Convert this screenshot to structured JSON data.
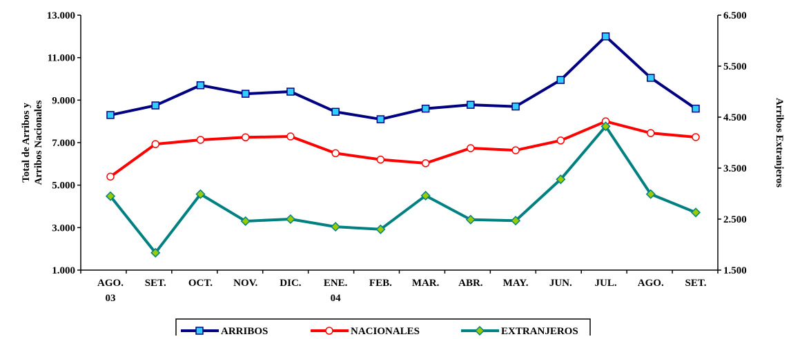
{
  "chart_data": {
    "type": "line",
    "categories": [
      "AGO.\n03",
      "SET.",
      "OCT.",
      "NOV.",
      "DIC.",
      "ENE.\n04",
      "FEB.",
      "MAR.",
      "ABR.",
      "MAY.",
      "JUN.",
      "JUL.",
      "AGO.",
      "SET."
    ],
    "ylabel": "Total de Arribos y\nArribos Nacionales",
    "y2label": "Arribos Extranjeros",
    "ylim": [
      1000,
      13000
    ],
    "yticks": [
      {
        "value": 1000,
        "label": "1.000"
      },
      {
        "value": 3000,
        "label": "3.000"
      },
      {
        "value": 5000,
        "label": "5.000"
      },
      {
        "value": 7000,
        "label": "7.000"
      },
      {
        "value": 9000,
        "label": "9.000"
      },
      {
        "value": 11000,
        "label": "11.000"
      },
      {
        "value": 13000,
        "label": "13.000"
      }
    ],
    "y2lim": [
      1500,
      6500
    ],
    "y2ticks": [
      {
        "value": 1500,
        "label": "1.500"
      },
      {
        "value": 2500,
        "label": "2.500"
      },
      {
        "value": 3500,
        "label": "3.500"
      },
      {
        "value": 4500,
        "label": "4.500"
      },
      {
        "value": 5500,
        "label": "5.500"
      },
      {
        "value": 6500,
        "label": "6.500"
      }
    ],
    "legend": "bottom",
    "series": [
      {
        "name": "ARRIBOS",
        "color": "#000080",
        "marker": "square",
        "marker_color": "#33ccff",
        "axis": "y",
        "values": [
          8300,
          8750,
          9700,
          9300,
          9400,
          8450,
          8100,
          8600,
          8780,
          8700,
          9950,
          12000,
          10050,
          8600
        ]
      },
      {
        "name": "NACIONALES",
        "color": "#ff0000",
        "marker": "circle",
        "marker_color": "#ffffff",
        "axis": "y",
        "values": [
          5400,
          6930,
          7130,
          7250,
          7290,
          6500,
          6200,
          6030,
          6740,
          6640,
          7100,
          8000,
          7450,
          7260
        ]
      },
      {
        "name": "EXTRANJEROS",
        "color": "#008080",
        "marker": "diamond",
        "marker_color": "#99cc00",
        "axis": "y2",
        "values": [
          2950,
          1840,
          2990,
          2460,
          2500,
          2350,
          2300,
          2960,
          2490,
          2470,
          3280,
          4320,
          2990,
          2630
        ]
      }
    ]
  }
}
